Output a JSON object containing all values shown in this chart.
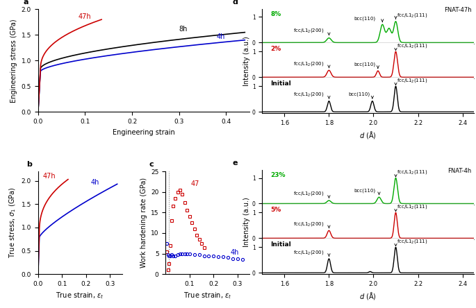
{
  "panel_a": {
    "label": "a",
    "xlabel": "Engineering strain",
    "ylabel": "Engineering stress (GPa)",
    "xlim": [
      0,
      0.45
    ],
    "ylim": [
      0,
      2.0
    ],
    "xticks": [
      0,
      0.1,
      0.2,
      0.3,
      0.4
    ],
    "yticks": [
      0,
      0.5,
      1.0,
      1.5,
      2.0
    ],
    "curve_47h_color": "#cc0000",
    "curve_8h_color": "#000000",
    "curve_4h_color": "#0000cc",
    "label_47h": [
      0.085,
      1.82
    ],
    "label_8h": [
      0.3,
      1.575
    ],
    "label_4h": [
      0.38,
      1.42
    ]
  },
  "panel_b": {
    "label": "b",
    "xlabel": "True strain, εt",
    "ylabel": "True stress, σ1 (GPa)",
    "xlim": [
      0,
      0.35
    ],
    "ylim": [
      0,
      2.2
    ],
    "xticks": [
      0,
      0.1,
      0.2,
      0.3
    ],
    "yticks": [
      0,
      0.5,
      1.0,
      1.5,
      2.0
    ],
    "curve_47h_color": "#cc0000",
    "curve_4h_color": "#0000cc",
    "label_47h": [
      0.02,
      2.06
    ],
    "label_4h": [
      0.22,
      1.92
    ]
  },
  "panel_c": {
    "label": "c",
    "xlabel": "True strain, εt",
    "ylabel": "Work hardening rate (GPa)",
    "xlim": [
      0,
      0.35
    ],
    "ylim": [
      0,
      25
    ],
    "xticks": [
      0.1,
      0.2,
      0.3
    ],
    "yticks": [
      0,
      5,
      10,
      15,
      20,
      25
    ],
    "color_47h": "#cc0000",
    "color_4h": "#0000cc",
    "label_47h": [
      0.105,
      21.5
    ],
    "label_4h": [
      0.27,
      4.8
    ],
    "dotted_line_x": 0.015,
    "e47c": [
      0.005,
      0.01,
      0.015,
      0.02,
      0.025,
      0.03,
      0.04,
      0.05,
      0.06,
      0.07,
      0.08,
      0.09,
      0.1,
      0.11,
      0.12,
      0.13,
      0.14,
      0.15,
      0.16
    ],
    "wh47": [
      5.5,
      1.0,
      2.5,
      7.0,
      13.0,
      16.5,
      18.5,
      20.0,
      20.5,
      19.5,
      17.5,
      15.5,
      14.0,
      12.5,
      11.0,
      9.5,
      8.5,
      7.5,
      6.5
    ],
    "e4c": [
      0.005,
      0.01,
      0.015,
      0.02,
      0.025,
      0.03,
      0.04,
      0.05,
      0.06,
      0.07,
      0.08,
      0.09,
      0.1,
      0.12,
      0.14,
      0.16,
      0.18,
      0.2,
      0.22,
      0.24,
      0.26,
      0.28,
      0.3,
      0.32
    ],
    "wh4": [
      7.5,
      4.8,
      4.5,
      4.5,
      4.8,
      4.5,
      4.5,
      4.8,
      5.0,
      5.0,
      5.0,
      5.0,
      5.0,
      4.8,
      4.8,
      4.5,
      4.5,
      4.5,
      4.3,
      4.2,
      4.0,
      3.8,
      3.7,
      3.5
    ]
  },
  "panel_d": {
    "label": "d",
    "title": "FNAT-47h",
    "xlabel": "d (Å)",
    "ylabel": "Intensity (a.u.)",
    "xlim": [
      1.5,
      2.45
    ],
    "ylim": [
      -0.05,
      1.15
    ],
    "xticks": [
      1.6,
      1.8,
      2.0,
      2.2,
      2.4
    ],
    "yticks": [
      0,
      1
    ],
    "sub_colors": [
      "#00aa00",
      "#cc0000",
      "#000000"
    ],
    "sub_labels": [
      "8%",
      "2%",
      "Initial"
    ]
  },
  "panel_e": {
    "label": "e",
    "title": "FNAT-4h",
    "xlabel": "d (Å)",
    "ylabel": "Intensity (a.u.)",
    "xlim": [
      1.5,
      2.45
    ],
    "ylim": [
      -0.05,
      1.15
    ],
    "xticks": [
      1.6,
      1.8,
      2.0,
      2.2,
      2.4
    ],
    "yticks": [
      0,
      1
    ],
    "sub_colors": [
      "#00aa00",
      "#cc0000",
      "#000000"
    ],
    "sub_labels": [
      "23%",
      "5%",
      "Initial"
    ]
  }
}
